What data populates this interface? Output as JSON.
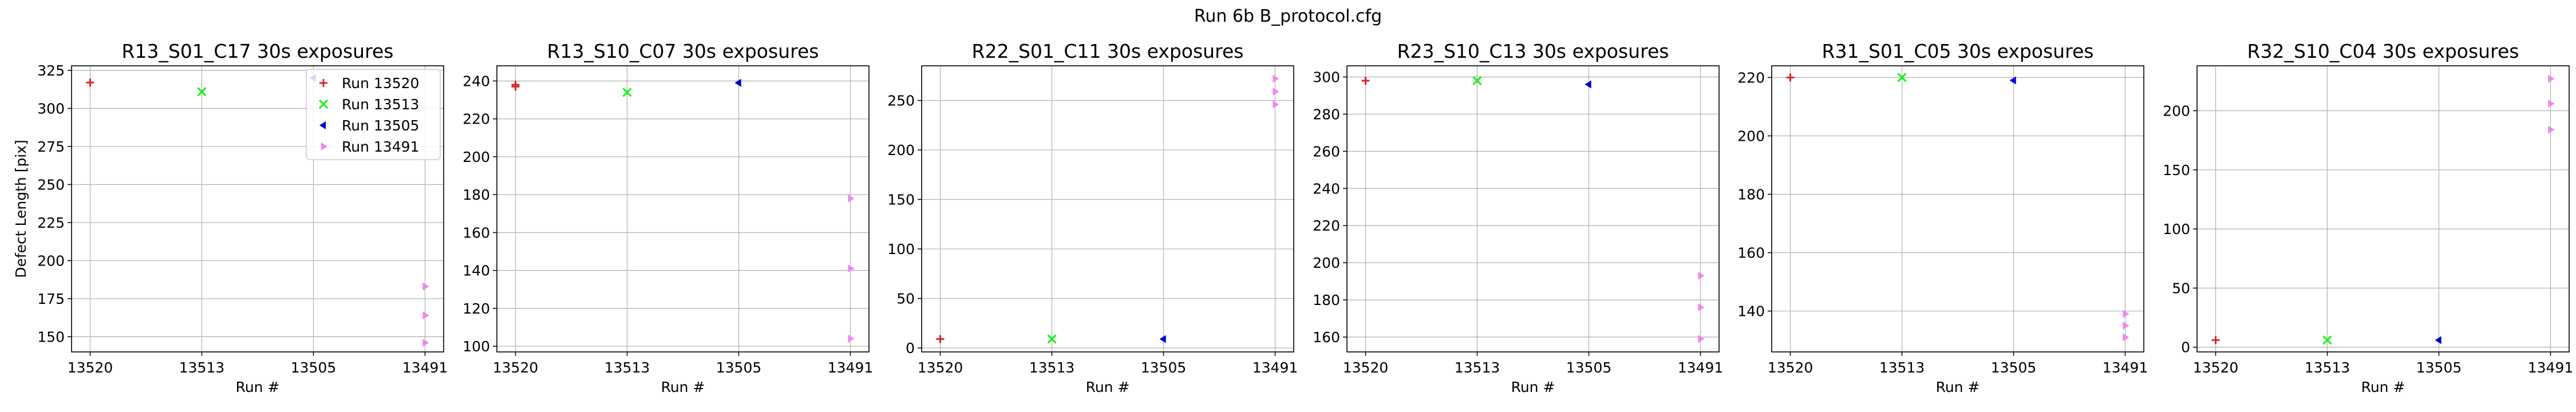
{
  "figure": {
    "title": "Run 6b B_protocol.cfg"
  },
  "colors": {
    "13520": "#d62728",
    "13513": "#22ee22",
    "13505": "#0000cc",
    "13491": "#ee88ee"
  },
  "legend": {
    "placement": "upper-right of first panel",
    "entries": [
      "Run 13520",
      "Run 13513",
      "Run 13505",
      "Run 13491"
    ]
  },
  "chart_data": [
    {
      "type": "scatter",
      "title": "R13_S01_C17 30s exposures",
      "xlabel": "Run #",
      "ylabel": "Defect Length [pix]",
      "categories": [
        "13520",
        "13513",
        "13505",
        "13491"
      ],
      "ylim": [
        140,
        328
      ],
      "yticks": [
        150,
        175,
        200,
        225,
        250,
        275,
        300,
        325
      ],
      "grid": true,
      "series": [
        {
          "name": "Run 13520",
          "points": [
            [
              0,
              317
            ]
          ]
        },
        {
          "name": "Run 13513",
          "points": [
            [
              1,
              311
            ]
          ]
        },
        {
          "name": "Run 13505",
          "points": [
            [
              2,
              320
            ]
          ]
        },
        {
          "name": "Run 13491",
          "points": [
            [
              3,
              183
            ],
            [
              3,
              164
            ],
            [
              3,
              146
            ]
          ]
        }
      ]
    },
    {
      "type": "scatter",
      "title": "R13_S10_C07 30s exposures",
      "xlabel": "Run #",
      "ylabel": "",
      "categories": [
        "13520",
        "13513",
        "13505",
        "13491"
      ],
      "ylim": [
        97,
        248
      ],
      "yticks": [
        100,
        120,
        140,
        160,
        180,
        200,
        220,
        240
      ],
      "grid": true,
      "series": [
        {
          "name": "Run 13520",
          "points": [
            [
              0,
              238
            ],
            [
              0,
              237
            ]
          ]
        },
        {
          "name": "Run 13513",
          "points": [
            [
              1,
              234
            ]
          ]
        },
        {
          "name": "Run 13505",
          "points": [
            [
              2,
              239
            ]
          ]
        },
        {
          "name": "Run 13491",
          "points": [
            [
              3,
              178
            ],
            [
              3,
              141
            ],
            [
              3,
              104
            ]
          ]
        }
      ]
    },
    {
      "type": "scatter",
      "title": "R22_S01_C11 30s exposures",
      "xlabel": "Run #",
      "ylabel": "",
      "categories": [
        "13520",
        "13513",
        "13505",
        "13491"
      ],
      "ylim": [
        -4,
        285
      ],
      "yticks": [
        0,
        50,
        100,
        150,
        200,
        250
      ],
      "grid": true,
      "series": [
        {
          "name": "Run 13520",
          "points": [
            [
              0,
              9
            ]
          ]
        },
        {
          "name": "Run 13513",
          "points": [
            [
              1,
              9
            ]
          ]
        },
        {
          "name": "Run 13505",
          "points": [
            [
              2,
              9
            ]
          ]
        },
        {
          "name": "Run 13491",
          "points": [
            [
              3,
              272
            ],
            [
              3,
              259
            ],
            [
              3,
              246
            ]
          ]
        }
      ]
    },
    {
      "type": "scatter",
      "title": "R23_S10_C13 30s exposures",
      "xlabel": "Run #",
      "ylabel": "",
      "categories": [
        "13520",
        "13513",
        "13505",
        "13491"
      ],
      "ylim": [
        152,
        306
      ],
      "yticks": [
        160,
        180,
        200,
        220,
        240,
        260,
        280,
        300
      ],
      "grid": true,
      "series": [
        {
          "name": "Run 13520",
          "points": [
            [
              0,
              298
            ]
          ]
        },
        {
          "name": "Run 13513",
          "points": [
            [
              1,
              298
            ]
          ]
        },
        {
          "name": "Run 13505",
          "points": [
            [
              2,
              296
            ]
          ]
        },
        {
          "name": "Run 13491",
          "points": [
            [
              3,
              193
            ],
            [
              3,
              176
            ],
            [
              3,
              159
            ]
          ]
        }
      ]
    },
    {
      "type": "scatter",
      "title": "R31_S01_C05 30s exposures",
      "xlabel": "Run #",
      "ylabel": "",
      "categories": [
        "13520",
        "13513",
        "13505",
        "13491"
      ],
      "ylim": [
        126,
        224
      ],
      "yticks": [
        140,
        160,
        180,
        200,
        220
      ],
      "grid": true,
      "series": [
        {
          "name": "Run 13520",
          "points": [
            [
              0,
              220
            ]
          ]
        },
        {
          "name": "Run 13513",
          "points": [
            [
              1,
              220
            ]
          ]
        },
        {
          "name": "Run 13505",
          "points": [
            [
              2,
              219
            ]
          ]
        },
        {
          "name": "Run 13491",
          "points": [
            [
              3,
              139
            ],
            [
              3,
              135
            ],
            [
              3,
              131
            ]
          ]
        }
      ]
    },
    {
      "type": "scatter",
      "title": "R32_S10_C04 30s exposures",
      "xlabel": "Run #",
      "ylabel": "",
      "categories": [
        "13520",
        "13513",
        "13505",
        "13491"
      ],
      "ylim": [
        -4,
        238
      ],
      "yticks": [
        0,
        50,
        100,
        150,
        200
      ],
      "grid": true,
      "series": [
        {
          "name": "Run 13520",
          "points": [
            [
              0,
              6
            ]
          ]
        },
        {
          "name": "Run 13513",
          "points": [
            [
              1,
              6
            ]
          ]
        },
        {
          "name": "Run 13505",
          "points": [
            [
              2,
              6
            ]
          ]
        },
        {
          "name": "Run 13491",
          "points": [
            [
              3,
              227
            ],
            [
              3,
              206
            ],
            [
              3,
              184
            ]
          ]
        }
      ]
    }
  ]
}
